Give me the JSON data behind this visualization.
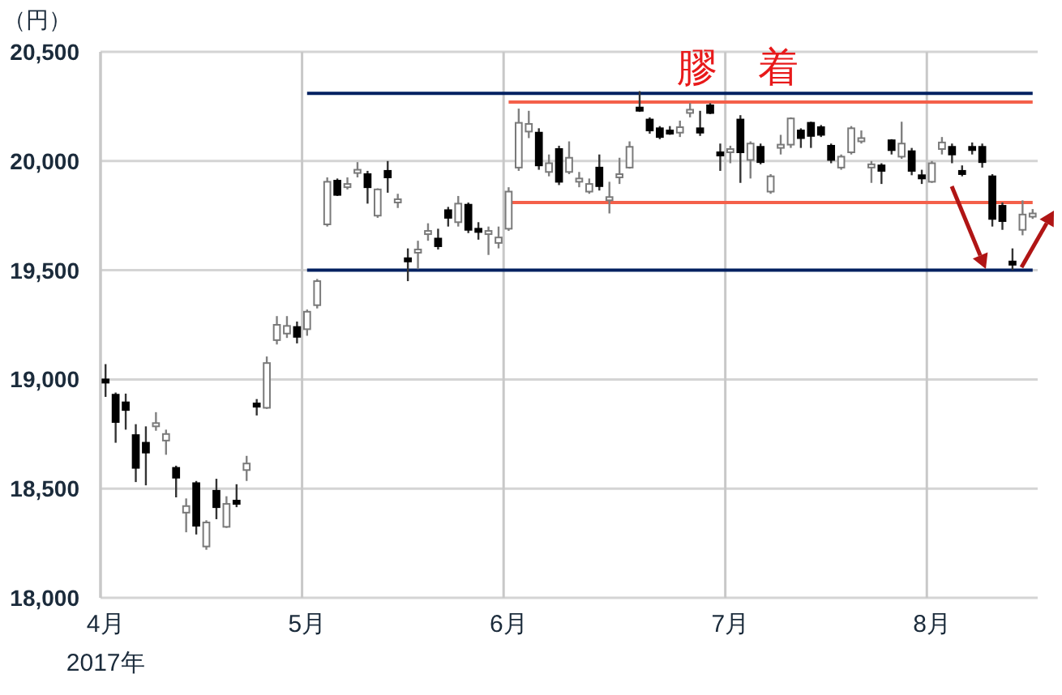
{
  "chart_data": {
    "type": "candlestick",
    "ylabel": "（円）",
    "categories": [
      "4月\n2017年",
      null,
      null,
      null,
      null,
      null,
      null,
      null,
      null,
      null,
      null,
      null,
      null,
      null,
      null,
      null,
      null,
      null,
      null,
      null,
      "5月",
      null,
      null,
      null,
      null,
      null,
      null,
      null,
      null,
      null,
      null,
      null,
      null,
      null,
      null,
      null,
      null,
      null,
      null,
      null,
      "6月",
      null,
      null,
      null,
      null,
      null,
      null,
      null,
      null,
      null,
      null,
      null,
      null,
      null,
      null,
      null,
      null,
      null,
      null,
      null,
      null,
      null,
      "7月",
      null,
      null,
      null,
      null,
      null,
      null,
      null,
      null,
      null,
      null,
      null,
      null,
      null,
      null,
      null,
      null,
      null,
      null,
      null,
      "8月",
      null,
      null,
      null,
      null,
      null,
      null,
      null,
      null,
      null,
      null
    ],
    "ohlc": [
      [
        19000,
        19070,
        18920,
        18990
      ],
      [
        18930,
        18940,
        18710,
        18805
      ],
      [
        18895,
        18935,
        18770,
        18860
      ],
      [
        18745,
        18795,
        18530,
        18595
      ],
      [
        18710,
        18785,
        18515,
        18665
      ],
      [
        18795,
        18850,
        18765,
        18800
      ],
      [
        18720,
        18770,
        18655,
        18750
      ],
      [
        18595,
        18605,
        18460,
        18550
      ],
      [
        18390,
        18455,
        18300,
        18420
      ],
      [
        18525,
        18535,
        18290,
        18330
      ],
      [
        18235,
        18355,
        18220,
        18345
      ],
      [
        18490,
        18545,
        18360,
        18415
      ],
      [
        18325,
        18465,
        18320,
        18430
      ],
      [
        18445,
        18520,
        18415,
        18430
      ],
      [
        18585,
        18650,
        18535,
        18615
      ],
      [
        18890,
        18910,
        18835,
        18875
      ],
      [
        18870,
        19105,
        18865,
        19075
      ],
      [
        19180,
        19290,
        19160,
        19250
      ],
      [
        19210,
        19290,
        19190,
        19245
      ],
      [
        19240,
        19265,
        19165,
        19195
      ],
      [
        19230,
        19320,
        19200,
        19310
      ],
      [
        19340,
        19460,
        19325,
        19450
      ],
      [
        19710,
        19925,
        19700,
        19905
      ],
      [
        19910,
        19920,
        19840,
        19845
      ],
      [
        19890,
        19925,
        19870,
        19895
      ],
      [
        19955,
        19995,
        19925,
        19960
      ],
      [
        19940,
        19955,
        19805,
        19880
      ],
      [
        19750,
        19875,
        19740,
        19870
      ],
      [
        19955,
        20000,
        19855,
        19925
      ],
      [
        19820,
        19850,
        19785,
        19825
      ],
      [
        19555,
        19600,
        19450,
        19550
      ],
      [
        19585,
        19635,
        19505,
        19595
      ],
      [
        19670,
        19715,
        19635,
        19680
      ],
      [
        19645,
        19690,
        19595,
        19610
      ],
      [
        19775,
        19790,
        19700,
        19740
      ],
      [
        19720,
        19840,
        19700,
        19805
      ],
      [
        19800,
        19810,
        19670,
        19685
      ],
      [
        19690,
        19720,
        19640,
        19685
      ],
      [
        19670,
        19700,
        19570,
        19680
      ],
      [
        19625,
        19700,
        19600,
        19650
      ],
      [
        19690,
        19880,
        19680,
        19860
      ],
      [
        19970,
        20240,
        19955,
        20175
      ],
      [
        20135,
        20230,
        20105,
        20170
      ],
      [
        20130,
        20150,
        19960,
        19980
      ],
      [
        19950,
        20030,
        19930,
        19990
      ],
      [
        20055,
        20070,
        19890,
        19905
      ],
      [
        19950,
        20090,
        19940,
        20015
      ],
      [
        19915,
        19950,
        19880,
        19920
      ],
      [
        19860,
        19920,
        19850,
        19895
      ],
      [
        19970,
        20030,
        19865,
        19885
      ],
      [
        19830,
        19905,
        19760,
        19835
      ],
      [
        19935,
        20015,
        19895,
        19940
      ],
      [
        19970,
        20090,
        19965,
        20065
      ],
      [
        20245,
        20320,
        20225,
        20240
      ],
      [
        20190,
        20200,
        20125,
        20140
      ],
      [
        20150,
        20160,
        20100,
        20110
      ],
      [
        20140,
        20160,
        20120,
        20135
      ],
      [
        20130,
        20185,
        20110,
        20155
      ],
      [
        20230,
        20265,
        20200,
        20235
      ],
      [
        20150,
        20230,
        20115,
        20130
      ],
      [
        20255,
        20265,
        20215,
        20220
      ],
      [
        20040,
        20080,
        19955,
        20035
      ],
      [
        20050,
        20070,
        19990,
        20055
      ],
      [
        20190,
        20210,
        19900,
        20040
      ],
      [
        20005,
        20090,
        19920,
        20080
      ],
      [
        20065,
        20080,
        19985,
        19995
      ],
      [
        19860,
        19940,
        19850,
        19930
      ],
      [
        20070,
        20120,
        20030,
        20075
      ],
      [
        20075,
        20200,
        20060,
        20195
      ],
      [
        20140,
        20150,
        20060,
        20105
      ],
      [
        20175,
        20180,
        20060,
        20115
      ],
      [
        20155,
        20165,
        20110,
        20120
      ],
      [
        20070,
        20080,
        19990,
        20005
      ],
      [
        19970,
        20030,
        19960,
        20020
      ],
      [
        20040,
        20160,
        20030,
        20150
      ],
      [
        20100,
        20140,
        20080,
        20105
      ],
      [
        19980,
        20000,
        19900,
        19985
      ],
      [
        19980,
        19990,
        19895,
        19955
      ],
      [
        20095,
        20100,
        20030,
        20050
      ],
      [
        20020,
        20180,
        20010,
        20080
      ],
      [
        20045,
        20060,
        19935,
        19955
      ],
      [
        19935,
        19960,
        19895,
        19925
      ],
      [
        19905,
        20000,
        19900,
        19990
      ],
      [
        20055,
        20110,
        20030,
        20085
      ],
      [
        20065,
        20080,
        19990,
        20030
      ],
      [
        19955,
        19980,
        19930,
        19950
      ],
      [
        20065,
        20085,
        20030,
        20060
      ],
      [
        20065,
        20080,
        19970,
        19995
      ],
      [
        19930,
        19940,
        19700,
        19735
      ],
      [
        19795,
        19810,
        19685,
        19725
      ],
      [
        19540,
        19600,
        19500,
        19535
      ],
      [
        19685,
        19820,
        19660,
        19755
      ],
      [
        19755,
        19780,
        19735,
        19760
      ]
    ],
    "series": [
      {
        "type": "line",
        "color": "#002060",
        "values": [
          null,
          null,
          null,
          null,
          null,
          null,
          null,
          null,
          null,
          null,
          null,
          null,
          null,
          null,
          null,
          null,
          null,
          null,
          null,
          null,
          20310,
          20310,
          20310,
          20310,
          20310,
          20310,
          20310,
          20310,
          20310,
          20310,
          20310,
          20310,
          20310,
          20310,
          20310,
          20310,
          20310,
          20310,
          20310,
          20310,
          20310,
          20310,
          20310,
          20310,
          20310,
          20310,
          20310,
          20310,
          20310,
          20310,
          20310,
          20310,
          20310,
          20310,
          20310,
          20310,
          20310,
          20310,
          20310,
          20310,
          20310,
          20310,
          20310,
          20310,
          20310,
          20310,
          20310,
          20310,
          20310,
          20310,
          20310,
          20310,
          20310,
          20310,
          20310,
          20310,
          20310,
          20310,
          20310,
          20310,
          20310,
          20310,
          20310,
          20310,
          20310,
          20310,
          20310,
          20310,
          20310,
          20310,
          20310,
          20310,
          20310
        ]
      },
      {
        "type": "line",
        "color": "#002060",
        "values": [
          null,
          null,
          null,
          null,
          null,
          null,
          null,
          null,
          null,
          null,
          null,
          null,
          null,
          null,
          null,
          null,
          null,
          null,
          null,
          null,
          19500,
          19500,
          19500,
          19500,
          19500,
          19500,
          19500,
          19500,
          19500,
          19500,
          19500,
          19500,
          19500,
          19500,
          19500,
          19500,
          19500,
          19500,
          19500,
          19500,
          19500,
          19500,
          19500,
          19500,
          19500,
          19500,
          19500,
          19500,
          19500,
          19500,
          19500,
          19500,
          19500,
          19500,
          19500,
          19500,
          19500,
          19500,
          19500,
          19500,
          19500,
          19500,
          19500,
          19500,
          19500,
          19500,
          19500,
          19500,
          19500,
          19500,
          19500,
          19500,
          19500,
          19500,
          19500,
          19500,
          19500,
          19500,
          19500,
          19500,
          19500,
          19500,
          19500,
          19500,
          19500,
          19500,
          19500,
          19500,
          19500,
          19500,
          19500,
          19500,
          19500
        ]
      },
      {
        "type": "line",
        "color": "#f4604a",
        "values": [
          null,
          null,
          null,
          null,
          null,
          null,
          null,
          null,
          null,
          null,
          null,
          null,
          null,
          null,
          null,
          null,
          null,
          null,
          null,
          null,
          null,
          null,
          null,
          null,
          null,
          null,
          null,
          null,
          null,
          null,
          null,
          null,
          null,
          null,
          null,
          null,
          null,
          null,
          null,
          null,
          20270,
          20270,
          20270,
          20270,
          20270,
          20270,
          20270,
          20270,
          20270,
          20270,
          20270,
          20270,
          20270,
          20270,
          20270,
          20270,
          20270,
          20270,
          20270,
          20270,
          20270,
          20270,
          20270,
          20270,
          20270,
          20270,
          20270,
          20270,
          20270,
          20270,
          20270,
          20270,
          20270,
          20270,
          20270,
          20270,
          20270,
          20270,
          20270,
          20270,
          20270,
          20270,
          20270,
          20270,
          20270,
          20270,
          20270,
          20270,
          20270,
          20270,
          20270,
          20270,
          20270
        ]
      },
      {
        "type": "line",
        "color": "#f4604a",
        "values": [
          null,
          null,
          null,
          null,
          null,
          null,
          null,
          null,
          null,
          null,
          null,
          null,
          null,
          null,
          null,
          null,
          null,
          null,
          null,
          null,
          null,
          null,
          null,
          null,
          null,
          null,
          null,
          null,
          null,
          null,
          null,
          null,
          null,
          null,
          null,
          null,
          null,
          null,
          null,
          null,
          19810,
          19810,
          19810,
          19810,
          19810,
          19810,
          19810,
          19810,
          19810,
          19810,
          19810,
          19810,
          19810,
          19810,
          19810,
          19810,
          19810,
          19810,
          19810,
          19810,
          19810,
          19810,
          19810,
          19810,
          19810,
          19810,
          19810,
          19810,
          19810,
          19810,
          19810,
          19810,
          19810,
          19810,
          19810,
          19810,
          19810,
          19810,
          19810,
          19810,
          19810,
          19810,
          19810,
          19810,
          19810,
          19810,
          19810,
          19810,
          19810,
          19810,
          19810,
          19810,
          19810
        ]
      }
    ],
    "ylim": [
      18000,
      20500
    ],
    "yticks": [
      {
        "value": 18000,
        "label": "18,000"
      },
      {
        "value": 18500,
        "label": "18,500"
      },
      {
        "value": 19000,
        "label": "19,000"
      },
      {
        "value": 19500,
        "label": "19,500"
      },
      {
        "value": 20000,
        "label": "20,000"
      },
      {
        "value": 20500,
        "label": "20,500"
      }
    ],
    "grid": true,
    "annotations": [
      "膠　着"
    ]
  }
}
